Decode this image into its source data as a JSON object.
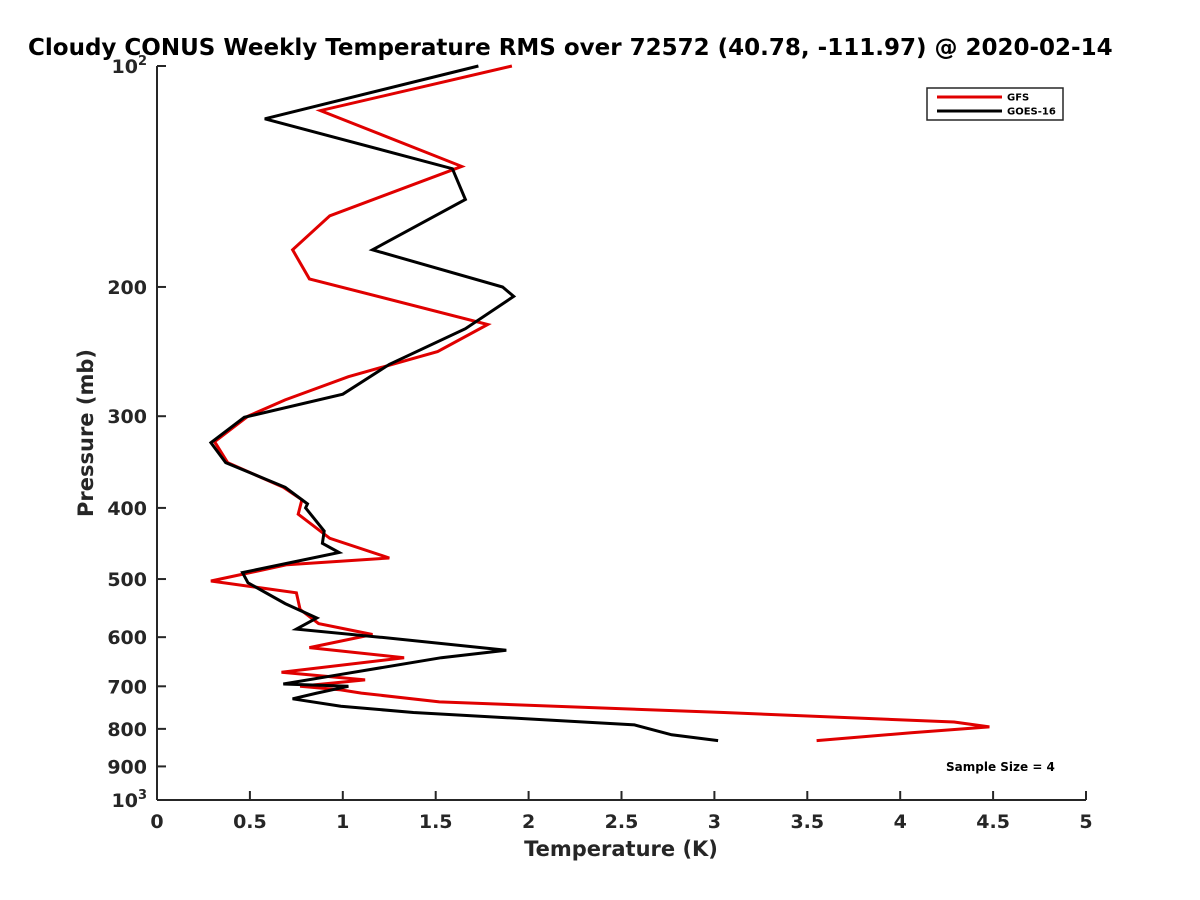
{
  "chart_data": {
    "type": "line",
    "orientation": "profile",
    "title": "Cloudy CONUS Weekly Temperature RMS over 72572 (40.78, -111.97) @ 2020-02-14",
    "xlabel": "Temperature (K)",
    "ylabel": "Pressure (mb)",
    "xlim": [
      0,
      5
    ],
    "ylim": [
      100,
      1000
    ],
    "yscale": "log",
    "y_reversed": true,
    "x_ticks": [
      0,
      0.5,
      1,
      1.5,
      2,
      2.5,
      3,
      3.5,
      4,
      4.5,
      5
    ],
    "x_tick_labels": [
      "0",
      "0.5",
      "1",
      "1.5",
      "2",
      "2.5",
      "3",
      "3.5",
      "4",
      "4.5",
      "5"
    ],
    "y_ticks": [
      {
        "value": 100,
        "base": "10",
        "exp": "2"
      },
      {
        "value": 200,
        "label": "200"
      },
      {
        "value": 300,
        "label": "300"
      },
      {
        "value": 400,
        "label": "400"
      },
      {
        "value": 500,
        "label": "500"
      },
      {
        "value": 600,
        "label": "600"
      },
      {
        "value": 700,
        "label": "700"
      },
      {
        "value": 800,
        "label": "800"
      },
      {
        "value": 900,
        "label": "900"
      },
      {
        "value": 1000,
        "base": "10",
        "exp": "3"
      }
    ],
    "legend": {
      "position": "top-right"
    },
    "annotation": "Sample Size = 4",
    "series": [
      {
        "name": "GFS",
        "color": "#e00000",
        "points": [
          [
            1.91,
            100
          ],
          [
            0.88,
            115
          ],
          [
            1.64,
            137
          ],
          [
            0.93,
            160
          ],
          [
            0.73,
            178
          ],
          [
            0.82,
            195
          ],
          [
            1.78,
            225
          ],
          [
            1.51,
            245
          ],
          [
            1.03,
            265
          ],
          [
            0.69,
            285
          ],
          [
            0.49,
            300
          ],
          [
            0.31,
            325
          ],
          [
            0.38,
            347
          ],
          [
            0.68,
            375
          ],
          [
            0.78,
            390
          ],
          [
            0.76,
            408
          ],
          [
            0.93,
            440
          ],
          [
            1.25,
            468
          ],
          [
            0.7,
            478
          ],
          [
            0.29,
            503
          ],
          [
            0.75,
            522
          ],
          [
            0.77,
            550
          ],
          [
            0.87,
            575
          ],
          [
            1.16,
            595
          ],
          [
            0.82,
            620
          ],
          [
            1.33,
            640
          ],
          [
            0.67,
            670
          ],
          [
            1.12,
            686
          ],
          [
            0.77,
            700
          ],
          [
            0.99,
            708
          ],
          [
            1.1,
            715
          ],
          [
            1.52,
            735
          ],
          [
            3.05,
            760
          ],
          [
            4.29,
            783
          ],
          [
            4.48,
            795
          ],
          [
            4.06,
            810
          ],
          [
            3.55,
            830
          ]
        ]
      },
      {
        "name": "GOES-16",
        "color": "#000000",
        "points": [
          [
            1.73,
            100
          ],
          [
            0.58,
            118
          ],
          [
            1.59,
            138
          ],
          [
            1.66,
            152
          ],
          [
            1.16,
            178
          ],
          [
            1.86,
            200
          ],
          [
            1.92,
            206
          ],
          [
            1.66,
            228
          ],
          [
            1.25,
            255
          ],
          [
            1.0,
            280
          ],
          [
            0.47,
            301
          ],
          [
            0.29,
            326
          ],
          [
            0.37,
            347
          ],
          [
            0.69,
            375
          ],
          [
            0.81,
            395
          ],
          [
            0.8,
            400
          ],
          [
            0.9,
            430
          ],
          [
            0.89,
            447
          ],
          [
            0.98,
            460
          ],
          [
            0.46,
            490
          ],
          [
            0.49,
            506
          ],
          [
            0.69,
            540
          ],
          [
            0.86,
            565
          ],
          [
            0.75,
            585
          ],
          [
            1.2,
            600
          ],
          [
            1.88,
            625
          ],
          [
            1.53,
            640
          ],
          [
            0.98,
            675
          ],
          [
            0.68,
            695
          ],
          [
            1.03,
            700
          ],
          [
            0.86,
            715
          ],
          [
            0.73,
            728
          ],
          [
            0.99,
            745
          ],
          [
            1.38,
            760
          ],
          [
            2.57,
            790
          ],
          [
            2.77,
            815
          ],
          [
            3.02,
            830
          ]
        ]
      }
    ]
  }
}
